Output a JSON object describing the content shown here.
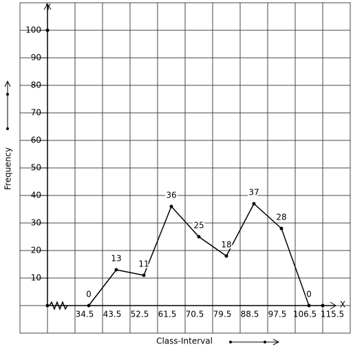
{
  "chart_data": {
    "type": "line",
    "x_label": "Class-Interval",
    "y_label": "Frequency",
    "x_axis_name": "X",
    "y_axis_name": "Y",
    "x": [
      39,
      48,
      57,
      66,
      75,
      84,
      93,
      102,
      111
    ],
    "series": [
      {
        "name": "Frequency",
        "color": "#000000",
        "values": [
          0,
          13,
          11,
          36,
          25,
          18,
          37,
          28,
          0
        ]
      }
    ],
    "xlim": [
      25.5,
      124.5
    ],
    "xticks": [
      34.5,
      43.5,
      52.5,
      61.5,
      70.5,
      79.5,
      88.5,
      97.5,
      106.5,
      115.5
    ],
    "ylim": [
      0,
      110
    ],
    "yticks": [
      10,
      20,
      30,
      40,
      50,
      60,
      70,
      80,
      90,
      100
    ],
    "grid": true
  }
}
